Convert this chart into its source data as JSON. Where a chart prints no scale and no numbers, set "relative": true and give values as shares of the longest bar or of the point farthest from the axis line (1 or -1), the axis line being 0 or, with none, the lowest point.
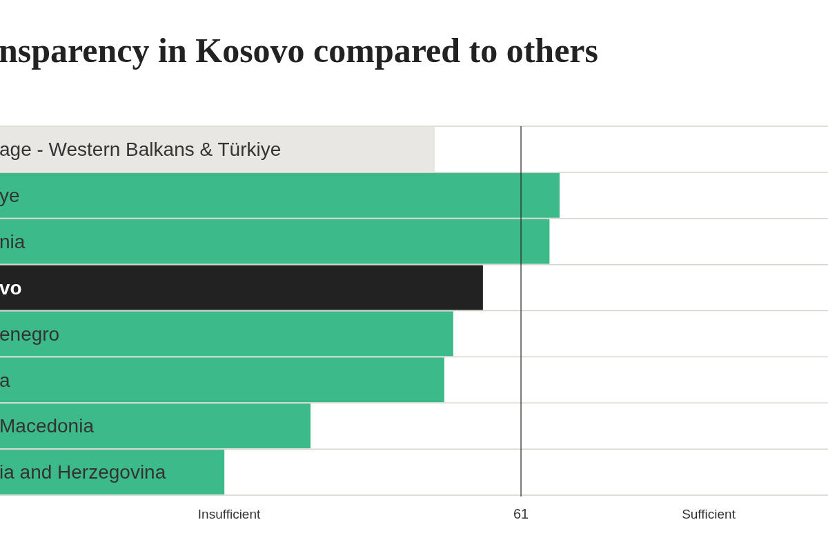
{
  "chart_data": {
    "type": "bar",
    "orientation": "horizontal",
    "relative": true,
    "title": "nsparency in Kosovo compared to others",
    "categories": [
      "age - Western Balkans & Türkiye",
      "ye",
      "nia",
      "vo",
      "enegro",
      "a",
      "Macedonia",
      "ia and Herzegovina"
    ],
    "values": [
      0.777,
      1,
      0.982,
      0.863,
      0.81,
      0.794,
      0.555,
      0.401
    ],
    "colors": [
      "#e9e7e3",
      "#3dba8a",
      "#3dba8a",
      "#222222",
      "#3dba8a",
      "#3dba8a",
      "#3dba8a",
      "#3dba8a"
    ],
    "ref_lines": [
      {
        "axis": "x",
        "value": 0.931,
        "color": "#222222"
      }
    ],
    "annotations": [
      "Insufficient",
      "61",
      "Sufficient"
    ],
    "grid": "y"
  }
}
